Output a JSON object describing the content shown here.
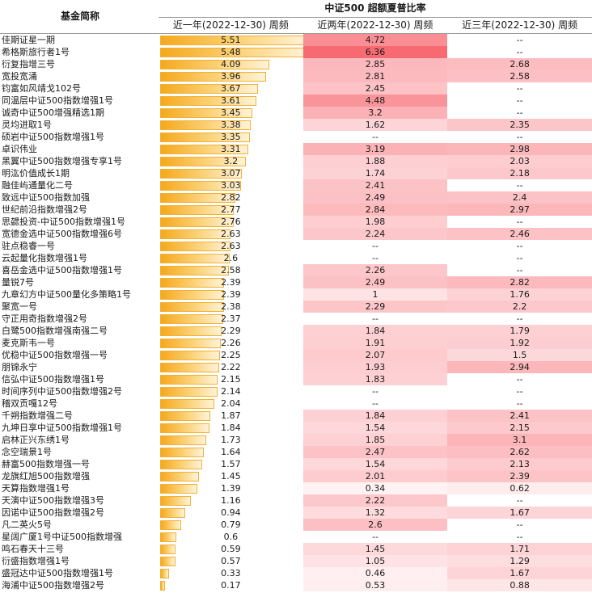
{
  "header": {
    "name_col": "基金简称",
    "group": "中证500 超额夏普比率",
    "cols": [
      "近一年(2022-12-30) 周频",
      "近两年(2022-12-30) 周频",
      "近三年(2022-12-30) 周频"
    ]
  },
  "colors": {
    "bar_dark": "#f6a81c",
    "bar_light": "#fff3d9",
    "heat_max": "#f76a72",
    "heat_min": "#fff2f3"
  },
  "rows": [
    {
      "name": "佳期证星一期",
      "y1": "5.51",
      "y2": "4.72",
      "y3": "--"
    },
    {
      "name": "希格斯旅行者1号",
      "y1": "5.48",
      "y2": "6.36",
      "y3": "--"
    },
    {
      "name": "衍复指增三号",
      "y1": "4.09",
      "y2": "2.85",
      "y3": "2.68"
    },
    {
      "name": "宽投宽涌",
      "y1": "3.96",
      "y2": "2.81",
      "y3": "2.58"
    },
    {
      "name": "钧富如风靖戈102号",
      "y1": "3.67",
      "y2": "2.45",
      "y3": "--"
    },
    {
      "name": "同温层中证500指数增强1号",
      "y1": "3.61",
      "y2": "4.48",
      "y3": "--"
    },
    {
      "name": "诚奇中证500增强精选1期",
      "y1": "3.45",
      "y2": "3.2",
      "y3": "--"
    },
    {
      "name": "灵均进取1号",
      "y1": "3.38",
      "y2": "1.62",
      "y3": "2.35"
    },
    {
      "name": "硕岩中证500指数增强1号",
      "y1": "3.35",
      "y2": "--",
      "y3": "--"
    },
    {
      "name": "卓识伟业",
      "y1": "3.31",
      "y2": "3.19",
      "y3": "2.98"
    },
    {
      "name": "黑翼中证500指数增强专享1号",
      "y1": "3.2",
      "y2": "1.88",
      "y3": "2.03"
    },
    {
      "name": "明汯价值成长1期",
      "y1": "3.07",
      "y2": "1.74",
      "y3": "2.18"
    },
    {
      "name": "融佳屿通量化二号",
      "y1": "3.03",
      "y2": "2.41",
      "y3": "--"
    },
    {
      "name": "致远中证500指数加强",
      "y1": "2.82",
      "y2": "2.49",
      "y3": "2.4"
    },
    {
      "name": "世纪前沿指数增强2号",
      "y1": "2.77",
      "y2": "2.84",
      "y3": "2.97"
    },
    {
      "name": "思勰投资-中证500指数增强1号",
      "y1": "2.76",
      "y2": "1.98",
      "y3": "--"
    },
    {
      "name": "宽德金选中证500指数增强6号",
      "y1": "2.63",
      "y2": "2.24",
      "y3": "2.46"
    },
    {
      "name": "驻点稳睿一号",
      "y1": "2.63",
      "y2": "--",
      "y3": "--"
    },
    {
      "name": "云起量化指数增强1号",
      "y1": "2.6",
      "y2": "--",
      "y3": "--"
    },
    {
      "name": "喜岳金选中证500指数增强1号",
      "y1": "2.58",
      "y2": "2.26",
      "y3": "--"
    },
    {
      "name": "量锐7号",
      "y1": "2.39",
      "y2": "2.49",
      "y3": "2.82"
    },
    {
      "name": "九章幻方中证500量化多策略1号",
      "y1": "2.39",
      "y2": "1",
      "y3": "1.76"
    },
    {
      "name": "聚宽一号",
      "y1": "2.38",
      "y2": "2.29",
      "y3": "2.2"
    },
    {
      "name": "守正用奇指数增强2号",
      "y1": "2.37",
      "y2": "--",
      "y3": "--"
    },
    {
      "name": "白鹭500指数增强南强二号",
      "y1": "2.29",
      "y2": "1.84",
      "y3": "1.79"
    },
    {
      "name": "麦克斯韦一号",
      "y1": "2.26",
      "y2": "1.91",
      "y3": "1.92"
    },
    {
      "name": "优稳中证500指数增强一号",
      "y1": "2.25",
      "y2": "2.07",
      "y3": "1.5"
    },
    {
      "name": "朋锦永宁",
      "y1": "2.22",
      "y2": "1.93",
      "y3": "2.94"
    },
    {
      "name": "信弘中证500指数增强1号",
      "y1": "2.15",
      "y2": "1.83",
      "y3": "--"
    },
    {
      "name": "时间序列中证500指数增强2号",
      "y1": "2.14",
      "y2": "--",
      "y3": "--"
    },
    {
      "name": "稽双贡嘎12号",
      "y1": "2.04",
      "y2": "--",
      "y3": "--"
    },
    {
      "name": "千朔指数增强二号",
      "y1": "1.87",
      "y2": "1.84",
      "y3": "2.41"
    },
    {
      "name": "九坤日享中证500指数增强1号",
      "y1": "1.84",
      "y2": "1.54",
      "y3": "2.15"
    },
    {
      "name": "启林正兴东绣1号",
      "y1": "1.73",
      "y2": "1.85",
      "y3": "3.1"
    },
    {
      "name": "念空瑞景1号",
      "y1": "1.64",
      "y2": "2.47",
      "y3": "2.62"
    },
    {
      "name": "赫富500指数增强一号",
      "y1": "1.57",
      "y2": "1.54",
      "y3": "2.13"
    },
    {
      "name": "龙旗红旭500指数增强",
      "y1": "1.45",
      "y2": "2.01",
      "y3": "2.39"
    },
    {
      "name": "天算指数增强1号",
      "y1": "1.39",
      "y2": "0.34",
      "y3": "0.62"
    },
    {
      "name": "天演中证500指数增强3号",
      "y1": "1.16",
      "y2": "2.22",
      "y3": "--"
    },
    {
      "name": "因诺中证500指数增强2号",
      "y1": "0.94",
      "y2": "1.32",
      "y3": "1.67"
    },
    {
      "name": "凡二英火5号",
      "y1": "0.79",
      "y2": "2.6",
      "y3": "--"
    },
    {
      "name": "星阔广厦1号中证500指数增强",
      "y1": "0.6",
      "y2": "--",
      "y3": "--"
    },
    {
      "name": "鸣石春天十三号",
      "y1": "0.59",
      "y2": "1.45",
      "y3": "1.71"
    },
    {
      "name": "衍盛指数增强1号",
      "y1": "0.57",
      "y2": "1.05",
      "y3": "1.29"
    },
    {
      "name": "盛冠达中证500指数增强1号",
      "y1": "0.33",
      "y2": "0.46",
      "y3": "1.67"
    },
    {
      "name": "海浦中证500指数增强2号",
      "y1": "0.17",
      "y2": "0.53",
      "y3": "0.88"
    }
  ]
}
